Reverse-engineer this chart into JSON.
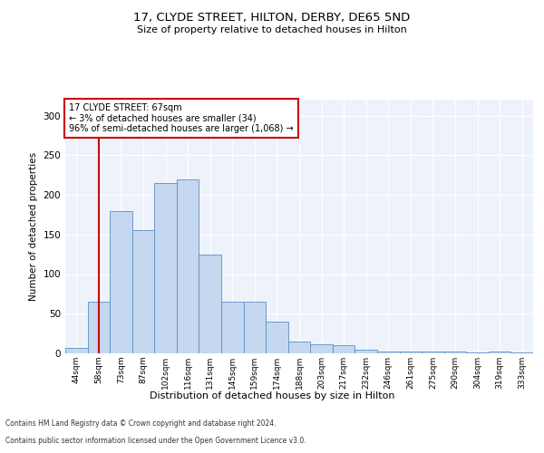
{
  "title": "17, CLYDE STREET, HILTON, DERBY, DE65 5ND",
  "subtitle": "Size of property relative to detached houses in Hilton",
  "xlabel": "Distribution of detached houses by size in Hilton",
  "ylabel": "Number of detached properties",
  "footer_line1": "Contains HM Land Registry data © Crown copyright and database right 2024.",
  "footer_line2": "Contains public sector information licensed under the Open Government Licence v3.0.",
  "annotation_title": "17 CLYDE STREET: 67sqm",
  "annotation_line2": "← 3% of detached houses are smaller (34)",
  "annotation_line3": "96% of semi-detached houses are larger (1,068) →",
  "bar_color": "#c5d8f0",
  "bar_edge_color": "#5a8fc3",
  "vline_color": "#cc0000",
  "annotation_box_color": "#ffffff",
  "annotation_box_edge": "#cc0000",
  "background_color": "#eef3fb",
  "categories": [
    "44sqm",
    "58sqm",
    "73sqm",
    "87sqm",
    "102sqm",
    "116sqm",
    "131sqm",
    "145sqm",
    "159sqm",
    "174sqm",
    "188sqm",
    "203sqm",
    "217sqm",
    "232sqm",
    "246sqm",
    "261sqm",
    "275sqm",
    "290sqm",
    "304sqm",
    "319sqm",
    "333sqm"
  ],
  "values": [
    7,
    65,
    180,
    155,
    215,
    220,
    125,
    65,
    65,
    40,
    15,
    12,
    10,
    5,
    2,
    2,
    2,
    2,
    1,
    2,
    1
  ],
  "vline_x": 1,
  "ylim": [
    0,
    320
  ],
  "yticks": [
    0,
    50,
    100,
    150,
    200,
    250,
    300
  ],
  "figsize": [
    6.0,
    5.0
  ],
  "dpi": 100
}
